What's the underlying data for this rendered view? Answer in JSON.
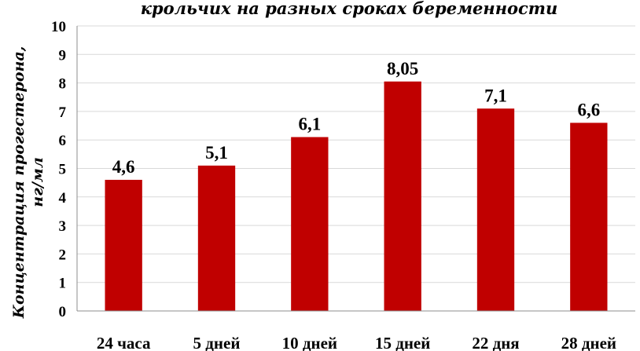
{
  "chart_data": {
    "type": "bar",
    "title": "крольчих на  разных  сроках беременности",
    "ylabel_line1": "Концентрация прогестерона,",
    "ylabel_line2": "нг/мл",
    "xlabel": "",
    "categories": [
      "24 часа",
      "5 дней",
      "10 дней",
      "15 дней",
      "22 дня",
      "28 дней"
    ],
    "values": [
      4.6,
      5.1,
      6.1,
      8.05,
      7.1,
      6.6
    ],
    "data_labels": [
      "4,6",
      "5,1",
      "6,1",
      "8,05",
      "7,1",
      "6,6"
    ],
    "yticks": [
      "0",
      "1",
      "2",
      "3",
      "4",
      "5",
      "6",
      "7",
      "8",
      "9",
      "10"
    ],
    "ylim": [
      0,
      10
    ],
    "grid": true,
    "legend": "none",
    "bar_color": "#c00000"
  }
}
